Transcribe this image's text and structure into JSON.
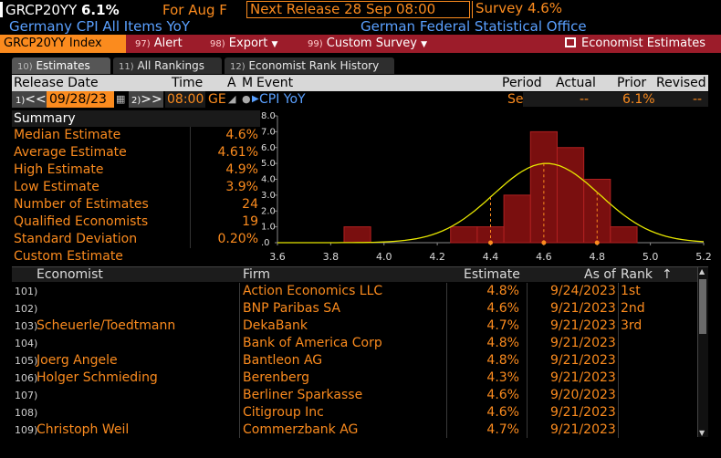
{
  "header": {
    "ticker": "GRCP20YY",
    "value": "6.1%",
    "for_label": "For Aug F",
    "next_release": "Next Release 28 Sep 08:00",
    "survey": "Survey 4.6%",
    "subtitle": "Germany CPI All Items YoY",
    "source": "German Federal Statistical Office"
  },
  "toolbar": {
    "index_label": "GRCP20YY Index",
    "alert_num": "97)",
    "alert_label": "Alert",
    "export_num": "98)",
    "export_label": "Export",
    "custom_num": "99)",
    "custom_label": "Custom Survey",
    "economist_label": "Economist Estimates"
  },
  "tabs": [
    {
      "num": "10)",
      "label": "Estimates"
    },
    {
      "num": "11)",
      "label": "All Rankings"
    },
    {
      "num": "12)",
      "label": "Economist Rank History"
    }
  ],
  "event_header": {
    "release_date": "Release Date",
    "time": "Time",
    "a": "A",
    "m": "M",
    "event": "Event",
    "period": "Period",
    "actual": "Actual",
    "prior": "Prior",
    "revised": "Revised"
  },
  "event_row": {
    "prev_num": "1)",
    "prev": "<<",
    "date": "09/28/23",
    "next_num": "2)",
    "next": ">>",
    "time": "08:00",
    "tz": "GE",
    "event": "CPI YoY",
    "period": "Sep P",
    "actual": "--",
    "prior": "6.1%",
    "revised": "--"
  },
  "summary": {
    "title": "Summary",
    "rows": [
      {
        "label": "Median Estimate",
        "value": "4.6%"
      },
      {
        "label": "Average Estimate",
        "value": "4.61%"
      },
      {
        "label": "High Estimate",
        "value": "4.9%"
      },
      {
        "label": "Low Estimate",
        "value": "3.9%"
      },
      {
        "label": "Number of Estimates",
        "value": "24"
      },
      {
        "label": "Qualified Economists",
        "value": "19"
      },
      {
        "label": "Standard Deviation",
        "value": "0.20%"
      },
      {
        "label": "Custom Estimate",
        "value": ""
      }
    ]
  },
  "chart_data": {
    "type": "bar",
    "x_ticks": [
      "3.6",
      "3.8",
      "4.0",
      "4.2",
      "4.4",
      "4.6",
      "4.8",
      "5.0",
      "5.2"
    ],
    "y_ticks": [
      "8.0",
      "7.0",
      "6.0",
      "5.0",
      "4.0",
      "3.0",
      "2.0",
      "1.0",
      ".0"
    ],
    "xlim": [
      3.6,
      5.2
    ],
    "ylim": [
      0,
      8
    ],
    "bins": [
      {
        "x": 3.9,
        "count": 1
      },
      {
        "x": 4.3,
        "count": 1
      },
      {
        "x": 4.4,
        "count": 1
      },
      {
        "x": 4.5,
        "count": 3
      },
      {
        "x": 4.6,
        "count": 7
      },
      {
        "x": 4.7,
        "count": 6
      },
      {
        "x": 4.8,
        "count": 4
      },
      {
        "x": 4.9,
        "count": 1
      }
    ],
    "normal_curve": {
      "mean": 4.61,
      "sd": 0.2
    },
    "markers": [
      4.4,
      4.6,
      4.8
    ],
    "colors": {
      "bar": "#7a0f0f",
      "bar_edge": "#b02020",
      "curve": "#e6e600",
      "grid": "#444444"
    }
  },
  "table": {
    "headers": {
      "economist": "Economist",
      "firm": "Firm",
      "estimate": "Estimate",
      "as_of": "As of",
      "rank": "Rank"
    },
    "rows": [
      {
        "num": "101)",
        "economist": "",
        "firm": "Action Economics LLC",
        "estimate": "4.8%",
        "date": "9/24/2023",
        "rank": "1st"
      },
      {
        "num": "102)",
        "economist": "",
        "firm": "BNP Paribas SA",
        "estimate": "4.6%",
        "date": "9/21/2023",
        "rank": "2nd"
      },
      {
        "num": "103)",
        "economist": "Scheuerle/Toedtmann",
        "firm": "DekaBank",
        "estimate": "4.7%",
        "date": "9/21/2023",
        "rank": "3rd"
      },
      {
        "num": "104)",
        "economist": "",
        "firm": "Bank of America Corp",
        "estimate": "4.8%",
        "date": "9/21/2023",
        "rank": ""
      },
      {
        "num": "105)",
        "economist": "Joerg Angele",
        "firm": "Bantleon AG",
        "estimate": "4.8%",
        "date": "9/21/2023",
        "rank": ""
      },
      {
        "num": "106)",
        "economist": "Holger Schmieding",
        "firm": "Berenberg",
        "estimate": "4.3%",
        "date": "9/21/2023",
        "rank": ""
      },
      {
        "num": "107)",
        "economist": "",
        "firm": "Berliner Sparkasse",
        "estimate": "4.6%",
        "date": "9/20/2023",
        "rank": ""
      },
      {
        "num": "108)",
        "economist": "",
        "firm": "Citigroup Inc",
        "estimate": "4.6%",
        "date": "9/21/2023",
        "rank": ""
      },
      {
        "num": "109)",
        "economist": "Christoph Weil",
        "firm": "Commerzbank AG",
        "estimate": "4.7%",
        "date": "9/21/2023",
        "rank": ""
      }
    ]
  }
}
